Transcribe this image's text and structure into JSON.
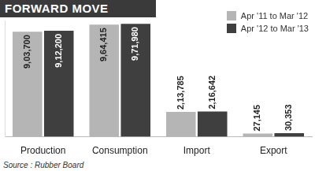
{
  "chart_data": {
    "type": "bar",
    "title": "FORWARD MOVE",
    "source": "Source : Rubber Board",
    "categories": [
      "Production",
      "Consumption",
      "Import",
      "Export"
    ],
    "series": [
      {
        "name": "Apr '11 to Mar '12",
        "color": "#b5b5b5",
        "values": [
          903700,
          964415,
          213785,
          27145
        ],
        "value_labels": [
          "9,03,700",
          "9,64,415",
          "2,13,785",
          "27,145"
        ]
      },
      {
        "name": "Apr '12 to Mar '13",
        "color": "#3f3f3f",
        "values": [
          912200,
          971980,
          216642,
          30353
        ],
        "value_labels": [
          "9,12,200",
          "9,71,980",
          "2,16,642",
          "30,353"
        ]
      }
    ],
    "ylim": [
      0,
      1000000
    ],
    "grid": false,
    "legend": "top-right",
    "data_labels": true,
    "tick_labels": "x"
  }
}
